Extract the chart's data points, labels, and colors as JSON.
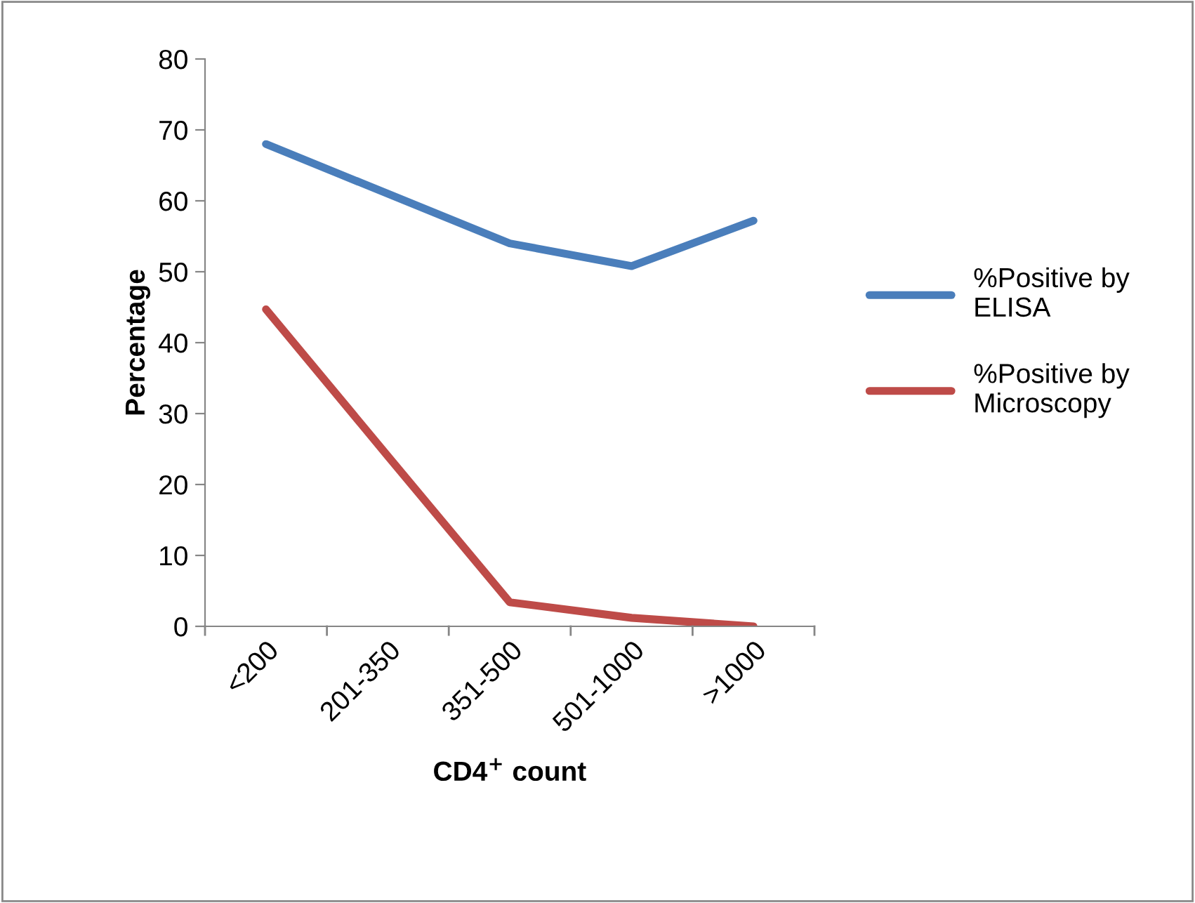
{
  "chart_data": {
    "type": "line",
    "xlabel": "CD4$^{+}$ count",
    "ylabel": "Percentage",
    "categories": [
      "<200",
      "201-350",
      "351-500",
      "501-1000",
      ">1000"
    ],
    "series": [
      {
        "name": "%Positive by ELISA",
        "color": "#4a7ebb",
        "values": [
          68,
          61,
          54,
          50.8,
          57.2
        ]
      },
      {
        "name": "%Positive by Microscopy",
        "color": "#be4b48",
        "values": [
          44.7,
          24,
          3.4,
          1.2,
          0
        ]
      }
    ],
    "ylim": [
      0,
      80
    ],
    "yticks": [
      0,
      10,
      20,
      30,
      40,
      50,
      60,
      70,
      80
    ],
    "grid": false,
    "legend": "right",
    "marker": "none",
    "line_style": "solid"
  }
}
